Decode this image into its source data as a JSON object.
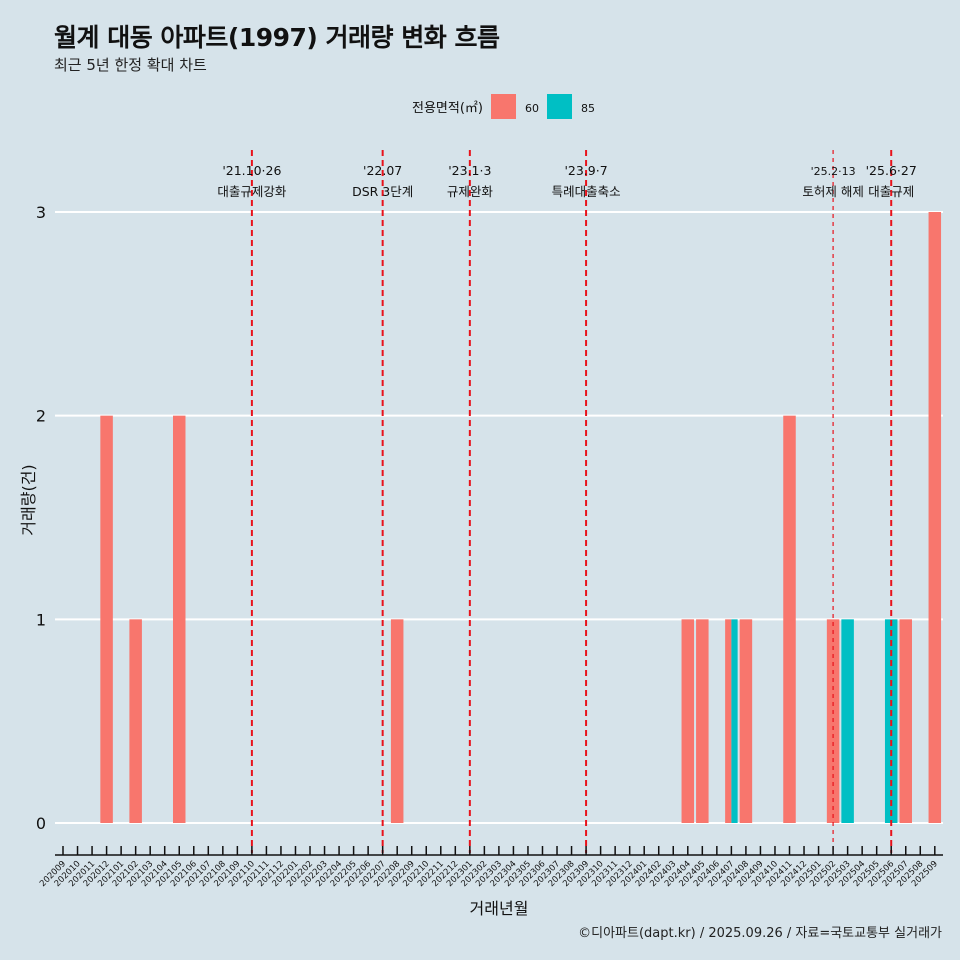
{
  "chart_data": {
    "type": "bar",
    "title": "월계 대동 아파트(1997) 거래량 변화 흐름",
    "subtitle": "최근 5년 한정 확대 차트",
    "xlabel": "거래년월",
    "ylabel": "거래량(건)",
    "ylim": [
      0,
      3
    ],
    "yticks": [
      0,
      1,
      2,
      3
    ],
    "legend": {
      "title": "전용면적(㎡)",
      "position": "top",
      "entries": [
        {
          "name": "60",
          "color": "#f8766d"
        },
        {
          "name": "85",
          "color": "#00bfc4"
        }
      ]
    },
    "categories": [
      "202009",
      "202010",
      "202011",
      "202012",
      "202101",
      "202102",
      "202103",
      "202104",
      "202105",
      "202106",
      "202107",
      "202108",
      "202109",
      "202110",
      "202111",
      "202112",
      "202201",
      "202202",
      "202203",
      "202204",
      "202205",
      "202206",
      "202207",
      "202208",
      "202209",
      "202210",
      "202211",
      "202212",
      "202301",
      "202302",
      "202303",
      "202304",
      "202305",
      "202306",
      "202307",
      "202308",
      "202309",
      "202310",
      "202311",
      "202312",
      "202401",
      "202402",
      "202403",
      "202404",
      "202405",
      "202406",
      "202407",
      "202408",
      "202409",
      "202410",
      "202411",
      "202412",
      "202501",
      "202502",
      "202503",
      "202504",
      "202505",
      "202506",
      "202507",
      "202508",
      "202509"
    ],
    "bars": [
      {
        "month": "202012",
        "area": "60",
        "value": 2
      },
      {
        "month": "202102",
        "area": "60",
        "value": 1
      },
      {
        "month": "202105",
        "area": "60",
        "value": 2
      },
      {
        "month": "202208",
        "area": "60",
        "value": 1
      },
      {
        "month": "202404",
        "area": "60",
        "value": 1
      },
      {
        "month": "202405",
        "area": "60",
        "value": 1
      },
      {
        "month": "202407",
        "area": "60",
        "value": 1,
        "dodge": "left"
      },
      {
        "month": "202407",
        "area": "85",
        "value": 1,
        "dodge": "right"
      },
      {
        "month": "202408",
        "area": "60",
        "value": 1
      },
      {
        "month": "202411",
        "area": "60",
        "value": 2
      },
      {
        "month": "202502",
        "area": "60",
        "value": 1
      },
      {
        "month": "202503",
        "area": "85",
        "value": 1
      },
      {
        "month": "202506",
        "area": "85",
        "value": 1
      },
      {
        "month": "202507",
        "area": "60",
        "value": 1
      },
      {
        "month": "202509",
        "area": "60",
        "value": 3
      }
    ],
    "events": [
      {
        "month": "202110",
        "date": "'21.10·26",
        "label": "대출규제강화",
        "style": "thick"
      },
      {
        "month": "202207",
        "date": "'22.07",
        "label": "DSR 3단계",
        "style": "thick"
      },
      {
        "month": "202301",
        "date": "'23.1·3",
        "label": "규제완화",
        "style": "thick"
      },
      {
        "month": "202309",
        "date": "'23.9·7",
        "label": "특례대출축소",
        "style": "thick"
      },
      {
        "month": "202502",
        "date": "'25.2·13",
        "label": "토허제 해제",
        "style": "thin"
      },
      {
        "month": "202506",
        "date": "'25.6·27",
        "label": "대출규제",
        "style": "thick"
      }
    ]
  },
  "caption": "©디아파트(dapt.kr) / 2025.09.26 / 자료=국토교통부 실거래가"
}
